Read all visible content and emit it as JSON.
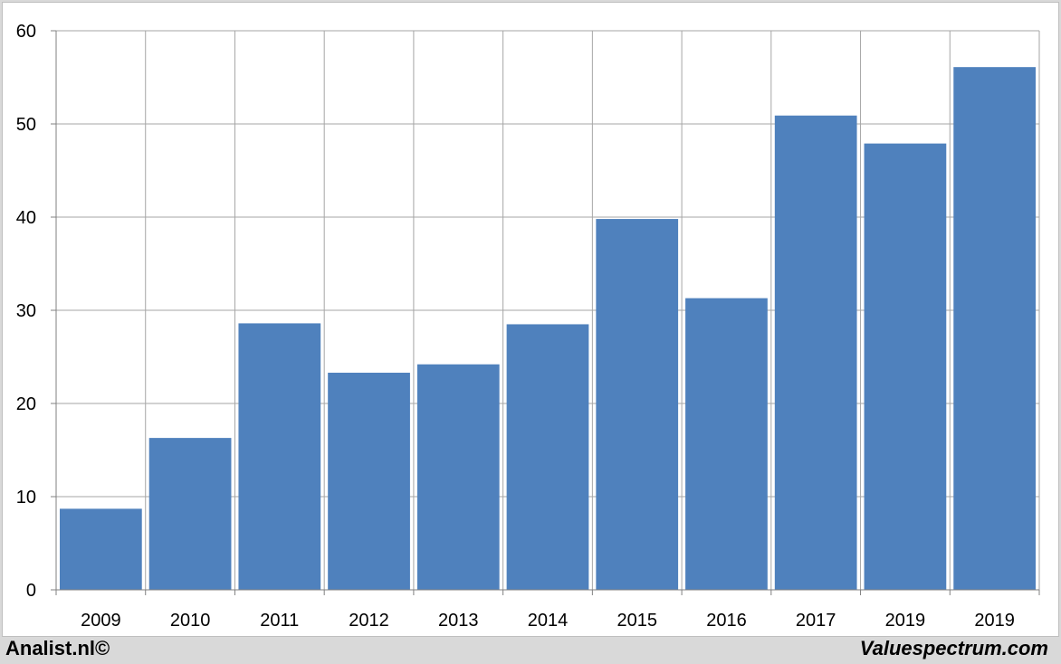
{
  "chart_data": {
    "type": "bar",
    "categories": [
      "2009",
      "2010",
      "2011",
      "2012",
      "2013",
      "2014",
      "2015",
      "2016",
      "2017",
      "2019",
      "2019"
    ],
    "values": [
      8.7,
      16.3,
      28.6,
      23.3,
      24.2,
      28.5,
      39.8,
      31.3,
      50.9,
      47.9,
      56.1
    ],
    "ylim": [
      0,
      60
    ],
    "yticks": [
      "0",
      "10",
      "20",
      "30",
      "40",
      "50",
      "60"
    ],
    "grid": true,
    "bar_color": "#4f81bd",
    "grid_color": "#a6a6a6",
    "title": "",
    "xlabel": "",
    "ylabel": ""
  },
  "footer": {
    "left": "Analist.nl©",
    "right": "Valuespectrum.com"
  }
}
